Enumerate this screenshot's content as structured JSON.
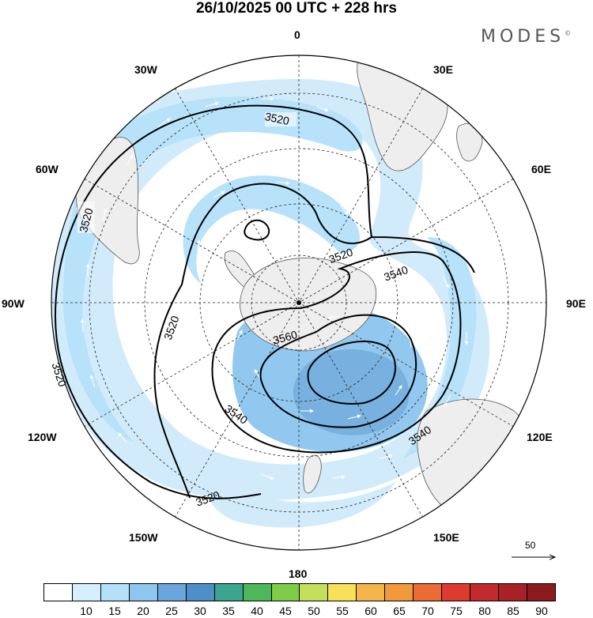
{
  "title": "26/10/2025  00 UTC  + 228 hrs",
  "brand": "MODES",
  "brand_mark": "©",
  "longitudes": {
    "n0": "0",
    "n30e": "30E",
    "n60e": "60E",
    "n90e": "90E",
    "n120e": "120E",
    "n150e": "150E",
    "n180": "180",
    "n150w": "150W",
    "n120w": "120W",
    "n90w": "90W",
    "n60w": "60W",
    "n30w": "30W"
  },
  "contours": [
    {
      "value": "3520",
      "kind": "outer"
    },
    {
      "value": "3520",
      "kind": "inner"
    },
    {
      "value": "3540",
      "kind": "ring"
    },
    {
      "value": "3560",
      "kind": "ring"
    }
  ],
  "contour_labels": {
    "a": "3520",
    "b": "3520",
    "c": "3520",
    "d": "3520",
    "e": "3520",
    "f": "3520",
    "g": "3540",
    "h": "3540",
    "i": "3540",
    "j": "3560"
  },
  "vector_reference": {
    "value": "50"
  },
  "colorbar": {
    "labels": [
      "10",
      "15",
      "20",
      "25",
      "30",
      "35",
      "40",
      "45",
      "50",
      "55",
      "60",
      "65",
      "70",
      "75",
      "80",
      "85",
      "90"
    ],
    "colors": [
      "#ffffff",
      "#d6efff",
      "#b4e1fa",
      "#8dc6ef",
      "#6aa6db",
      "#4f8fc8",
      "#3ca58f",
      "#4db859",
      "#7fcc49",
      "#c4e05a",
      "#f7e05a",
      "#f6b54a",
      "#f19a3c",
      "#ea6b34",
      "#dc3b2e",
      "#c22a2b",
      "#a82128",
      "#8b1a1e"
    ]
  }
}
